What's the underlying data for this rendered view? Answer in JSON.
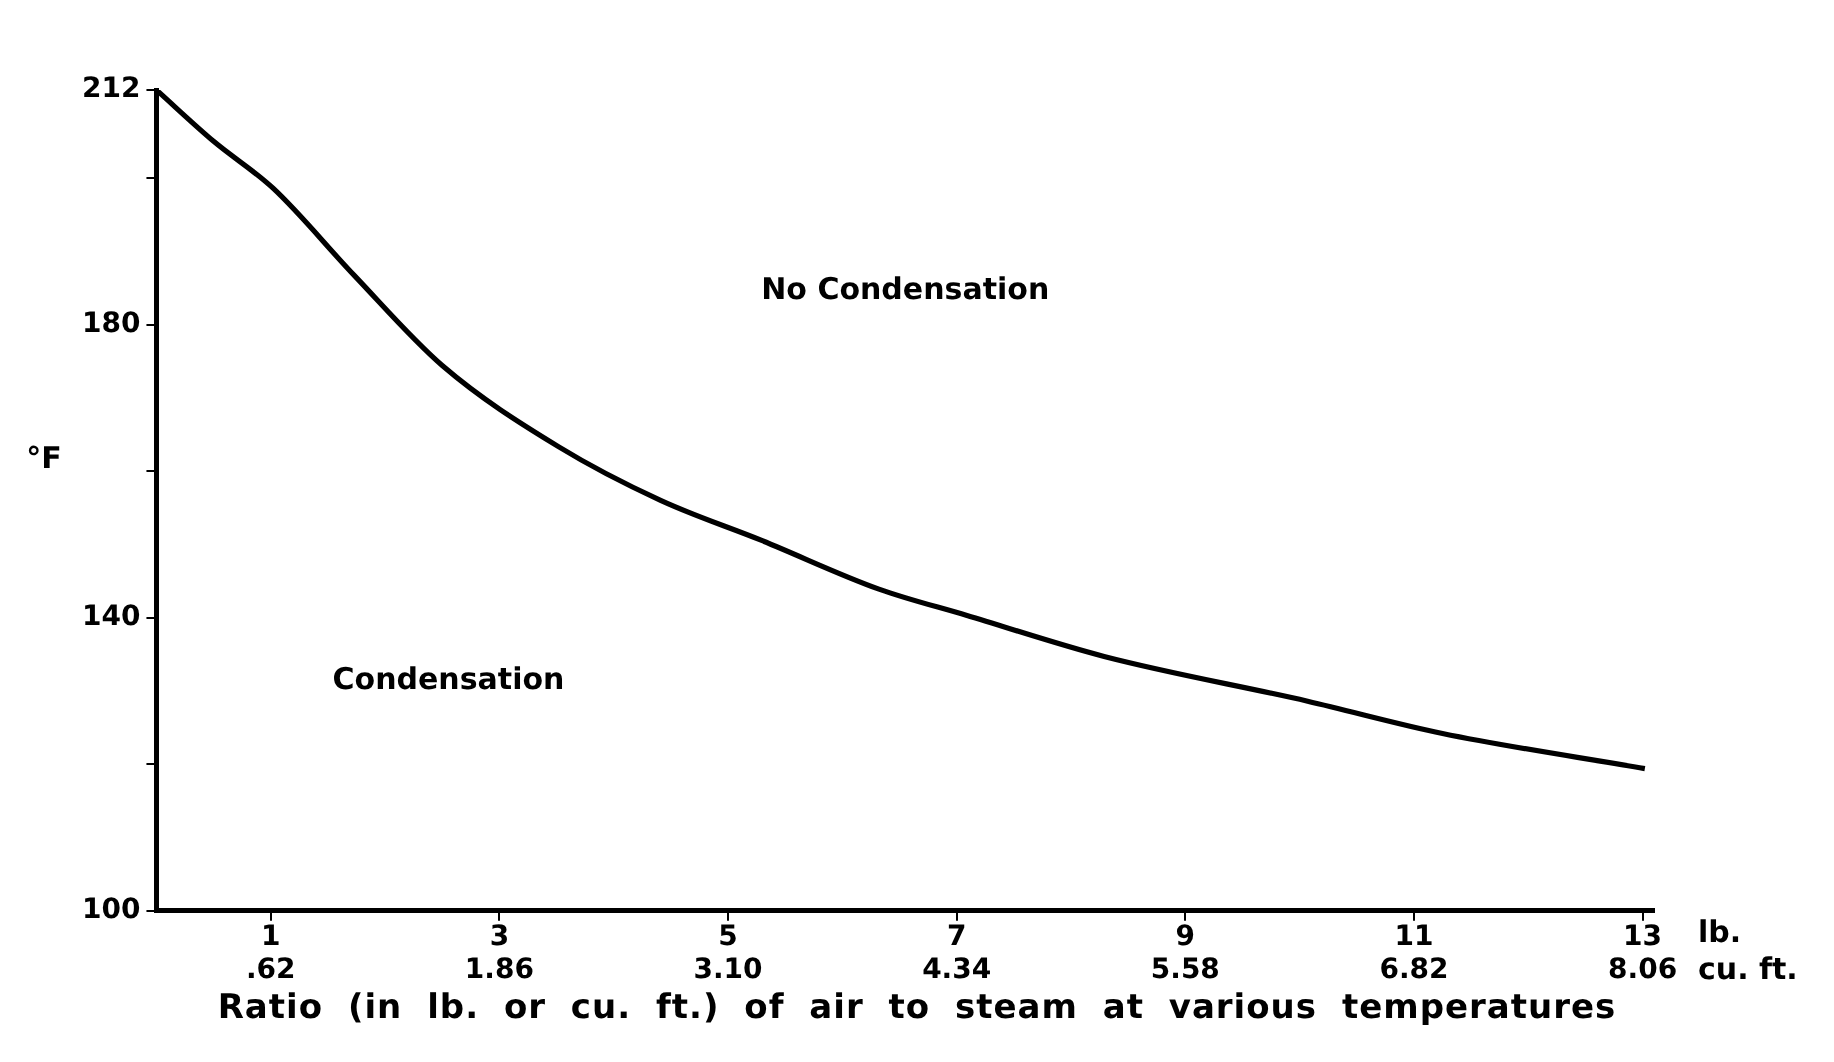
{
  "chart_data": {
    "type": "line",
    "ylabel": "°F",
    "xlabel": "lb.",
    "x2label": "cu. ft.",
    "x": [
      0,
      0.5,
      1.02,
      1.73,
      2.5,
      3.52,
      4.41,
      5.3,
      6.32,
      7.09,
      8.29,
      10.07,
      11.25,
      13.02
    ],
    "series": [
      {
        "color": "#000000",
        "values": [
          212,
          205,
          198.6,
          186.7,
          174.4,
          163.3,
          156,
          150.5,
          143.9,
          140.3,
          134.7,
          128.6,
          124.2,
          119.4
        ]
      }
    ],
    "xlim": [
      0,
      13.1
    ],
    "xticks": [
      1,
      3,
      5,
      7,
      9,
      11,
      13
    ],
    "x2lim": [
      0,
      8.122
    ],
    "x2ticks": [
      {
        "value": 0.62,
        "label": ".62"
      },
      {
        "value": 1.86,
        "label": "1.86"
      },
      {
        "value": 3.1,
        "label": "3.10"
      },
      {
        "value": 4.34,
        "label": "4.34"
      },
      {
        "value": 5.58,
        "label": "5.58"
      },
      {
        "value": 6.82,
        "label": "6.82"
      },
      {
        "value": 8.06,
        "label": "8.06"
      }
    ],
    "ylim": [
      100,
      212
    ],
    "yticks": [
      100,
      {
        "value": 120,
        "label": null
      },
      140,
      {
        "value": 160,
        "label": null
      },
      180,
      {
        "value": 200,
        "label": null
      },
      212
    ],
    "annotations": [
      "No Condensation",
      "Condensation",
      "Ratio (in lb. or cu. ft.) of air to steam at various temperatures"
    ],
    "grid": false,
    "legend": false,
    "marker": "none",
    "line_style": "solid"
  }
}
